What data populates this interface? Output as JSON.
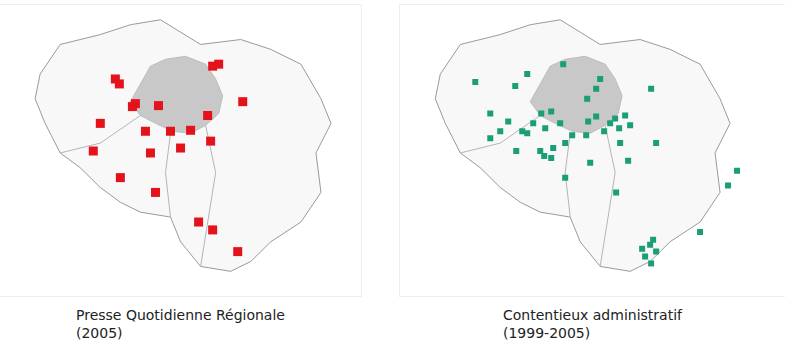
{
  "chart_data": [
    {
      "type": "scatter",
      "title": "Presse Quotidienne Régionale",
      "subtitle": "(2005)",
      "color": "#e3121b",
      "marker": "square",
      "tick_labels": false,
      "xlim": [
        0,
        360
      ],
      "ylim": [
        295,
        0
      ],
      "x": [
        115,
        119,
        212,
        218,
        135,
        132,
        158,
        242,
        100,
        145,
        170,
        207,
        210,
        190,
        180,
        93,
        150,
        120,
        155,
        198,
        212,
        237
      ],
      "y": [
        75,
        80,
        62,
        60,
        100,
        103,
        102,
        98,
        120,
        128,
        128,
        112,
        138,
        127,
        145,
        148,
        150,
        175,
        190,
        220,
        228,
        250
      ]
    },
    {
      "type": "scatter",
      "title": "Contentieux administratif",
      "subtitle": "(1999-2005)",
      "color": "#1a9e77",
      "marker": "square",
      "tick_labels": false,
      "xlim": [
        0,
        385
      ],
      "ylim": [
        295,
        0
      ],
      "x": [
        75,
        115,
        127,
        200,
        141,
        122,
        127,
        133,
        145,
        151,
        188,
        196,
        204,
        210,
        215,
        219,
        225,
        230,
        187,
        196,
        163,
        186,
        153,
        140,
        144,
        151,
        165,
        172,
        160,
        90,
        90,
        116,
        165,
        190,
        228,
        216,
        251,
        256,
        328,
        337,
        250,
        300,
        242,
        245,
        251,
        256,
        253,
        220,
        108,
        100
      ],
      "y": [
        78,
        82,
        70,
        75,
        110,
        128,
        130,
        120,
        125,
        108,
        118,
        113,
        128,
        120,
        115,
        125,
        112,
        122,
        95,
        85,
        60,
        132,
        145,
        148,
        153,
        155,
        140,
        132,
        120,
        110,
        135,
        148,
        175,
        160,
        158,
        190,
        85,
        140,
        183,
        168,
        243,
        230,
        247,
        255,
        262,
        250,
        238,
        140,
        118,
        128
      ]
    }
  ]
}
